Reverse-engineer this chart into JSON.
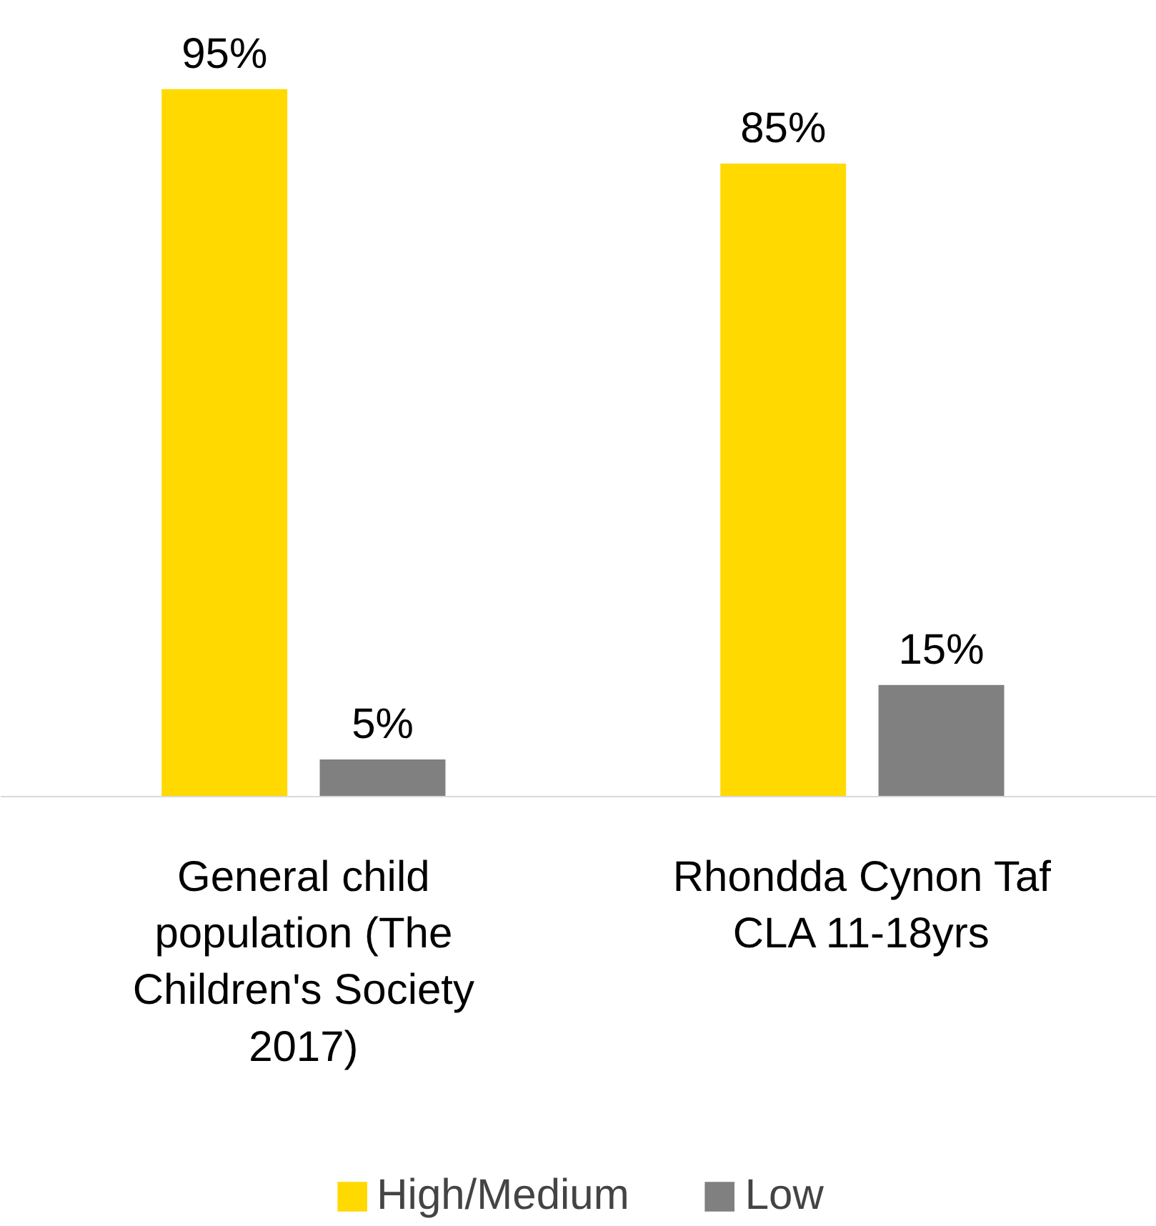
{
  "chart_data": {
    "type": "bar",
    "categories": [
      "General child population (The Children's Society 2017)",
      "Rhondda Cynon Taf CLA 11-18yrs"
    ],
    "series": [
      {
        "name": "High/Medium",
        "color": "#ffd900",
        "values": [
          95,
          85
        ],
        "value_labels": [
          "95%",
          "85%"
        ]
      },
      {
        "name": "Low",
        "color": "#808080",
        "values": [
          5,
          15
        ],
        "value_labels": [
          "5%",
          "15%"
        ]
      }
    ],
    "legend": "bottom",
    "grid": false
  }
}
